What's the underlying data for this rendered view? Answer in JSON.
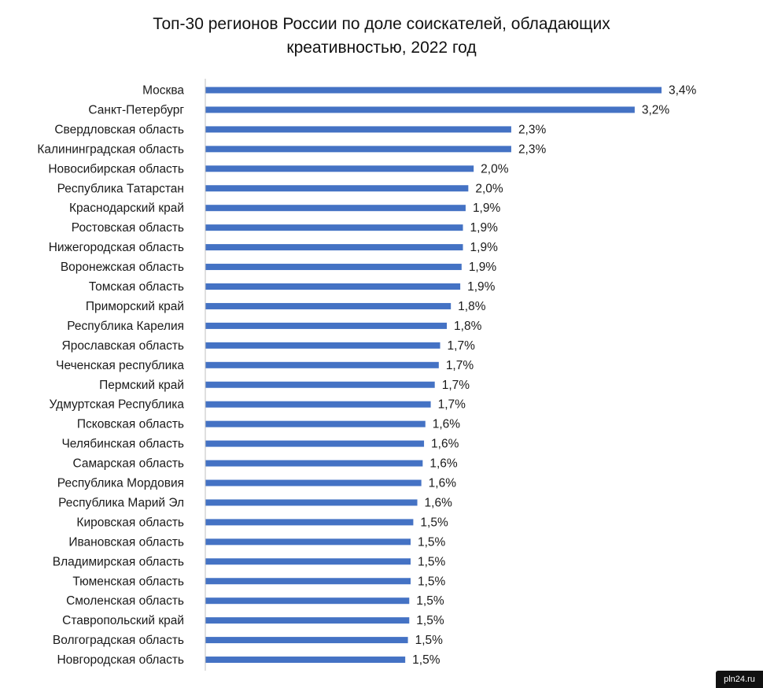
{
  "chart_data": {
    "type": "bar",
    "orientation": "horizontal",
    "title": "Топ-30 регионов России по доле соискателей, обладающих креативностью, 2022 год",
    "title_lines": [
      "Топ-30 регионов России по доле соискателей, обладающих",
      "креативностью, 2022 год"
    ],
    "categories": [
      "Москва",
      "Санкт-Петербург",
      "Свердловская область",
      "Калининградская область",
      "Новосибирская область",
      "Республика Татарстан",
      "Краснодарский край",
      "Ростовская область",
      "Нижегородская область",
      "Воронежская область",
      "Томская область",
      "Приморский край",
      "Республика Карелия",
      "Ярославская область",
      "Чеченская республика",
      "Пермский край",
      "Удмуртская Республика",
      "Псковская область",
      "Челябинская область",
      "Самарская область",
      "Республика Мордовия",
      "Республика Марий Эл",
      "Кировская область",
      "Ивановская область",
      "Владимирская область",
      "Тюменская область",
      "Смоленская область",
      "Ставропольский край",
      "Волгоградская область",
      "Новгородская область"
    ],
    "values": [
      3.4,
      3.2,
      2.28,
      2.28,
      2.0,
      1.96,
      1.94,
      1.92,
      1.92,
      1.91,
      1.9,
      1.83,
      1.8,
      1.75,
      1.74,
      1.71,
      1.68,
      1.64,
      1.63,
      1.62,
      1.61,
      1.58,
      1.55,
      1.53,
      1.53,
      1.53,
      1.52,
      1.52,
      1.51,
      1.49
    ],
    "value_labels": [
      "3,4%",
      "3,2%",
      "2,3%",
      "2,3%",
      "2,0%",
      "2,0%",
      "1,9%",
      "1,9%",
      "1,9%",
      "1,9%",
      "1,9%",
      "1,8%",
      "1,8%",
      "1,7%",
      "1,7%",
      "1,7%",
      "1,7%",
      "1,6%",
      "1,6%",
      "1,6%",
      "1,6%",
      "1,6%",
      "1,5%",
      "1,5%",
      "1,5%",
      "1,5%",
      "1,5%",
      "1,5%",
      "1,5%",
      "1,5%"
    ],
    "unit": "%",
    "xlim": [
      0,
      3.4
    ],
    "grid": false,
    "legend": "none",
    "bar_color": "#4472C4",
    "axis_color": "#BFBFBF"
  },
  "watermark": "pln24.ru"
}
